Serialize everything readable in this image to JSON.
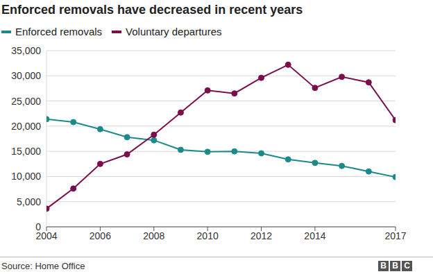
{
  "chart_data": {
    "type": "line",
    "title": "Enforced removals have decreased in recent years",
    "source": "Source: Home Office",
    "logo": "BBC",
    "x": [
      2004,
      2005,
      2006,
      2007,
      2008,
      2009,
      2010,
      2011,
      2012,
      2013,
      2014,
      2015,
      2016,
      2017
    ],
    "series": [
      {
        "name": "Enforced removals",
        "color": "#1d8a8a",
        "marker": "circle",
        "values": [
          21400,
          20800,
          19400,
          17800,
          17200,
          15300,
          14900,
          15000,
          14600,
          13400,
          12700,
          12100,
          11000,
          9900
        ]
      },
      {
        "name": "Voluntary departures",
        "color": "#7b0d4c",
        "marker": "circle",
        "values": [
          3600,
          7600,
          12500,
          14400,
          18300,
          22700,
          27100,
          26500,
          29600,
          32200,
          27600,
          29800,
          28700,
          21200
        ]
      }
    ],
    "xlim": [
      2004,
      2017
    ],
    "xticks": [
      2004,
      2006,
      2008,
      2010,
      2012,
      2014,
      2017
    ],
    "ylim": [
      0,
      35000
    ],
    "yticks": [
      0,
      {
        "value": 5000,
        "label": "5,000"
      },
      {
        "value": 10000,
        "label": "10,000"
      },
      {
        "value": 15000,
        "label": "15,000"
      },
      {
        "value": 20000,
        "label": "20,000"
      },
      {
        "value": 25000,
        "label": "25,000"
      },
      {
        "value": 30000,
        "label": "30,000"
      },
      {
        "value": 35000,
        "label": "35,000"
      }
    ],
    "grid": true,
    "legend": "top-left"
  }
}
